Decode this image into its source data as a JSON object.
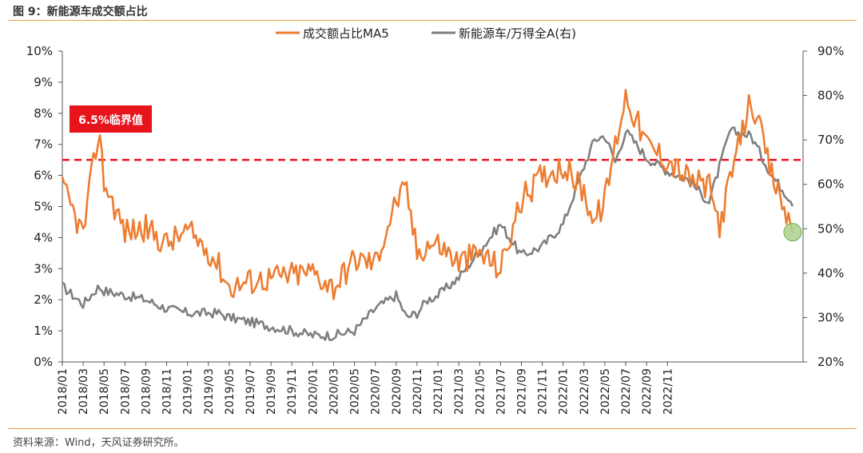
{
  "title": "图 9：新能源车成交额占比",
  "source": "资料来源：Wind，天风证券研究所。",
  "chart_data": {
    "type": "line",
    "title": "图 9：新能源车成交额占比",
    "annotation": "6.5%临界值",
    "threshold": 6.5,
    "ylim_left": [
      0,
      10
    ],
    "ylim_right": [
      20,
      90
    ],
    "yticks_left": [
      "0%",
      "1%",
      "2%",
      "3%",
      "4%",
      "5%",
      "6%",
      "7%",
      "8%",
      "9%",
      "10%"
    ],
    "yticks_right": [
      "20%",
      "30%",
      "40%",
      "50%",
      "60%",
      "70%",
      "80%",
      "90%"
    ],
    "x_tick_labels": [
      "2018/01",
      "2018/03",
      "2018/05",
      "2018/07",
      "2018/09",
      "2018/11",
      "2019/01",
      "2019/03",
      "2019/05",
      "2019/07",
      "2019/09",
      "2019/11",
      "2020/01",
      "2020/03",
      "2020/05",
      "2020/07",
      "2020/09",
      "2020/11",
      "2021/01",
      "2021/03",
      "2021/05",
      "2021/07",
      "2021/09",
      "2021/11",
      "2022/01",
      "2022/03",
      "2022/05",
      "2022/07",
      "2022/09",
      "2022/11"
    ],
    "x_months": [
      0,
      2,
      3.5,
      4,
      6,
      8,
      10,
      12,
      14,
      15,
      16,
      18,
      20,
      22,
      24,
      26,
      28,
      30,
      32,
      33,
      34,
      35,
      36,
      38,
      40,
      42,
      44,
      46,
      48,
      50,
      51,
      52,
      53,
      54,
      56,
      58,
      60,
      62,
      63,
      64,
      66,
      68,
      70
    ],
    "series": [
      {
        "name": "成交额占比MA5",
        "axis": "left",
        "color": "#ed7d31",
        "values": [
          5.6,
          4.1,
          7.5,
          5.8,
          4.2,
          4.3,
          3.8,
          4.2,
          3.6,
          3.1,
          2.4,
          2.6,
          2.7,
          2.8,
          2.9,
          2.4,
          3.3,
          3.2,
          5.2,
          5.5,
          3.5,
          3.8,
          3.8,
          3.2,
          3.5,
          3.0,
          5.2,
          6.0,
          6.3,
          5.5,
          4.5,
          5.2,
          7.0,
          8.6,
          7.0,
          6.5,
          5.9,
          5.6,
          4.4,
          5.8,
          8.5,
          6.0,
          4.2
        ]
      },
      {
        "name": "新能源车/万得全A(右)",
        "axis": "right",
        "color": "#7f7f7f",
        "values": [
          37,
          33,
          37,
          36,
          35,
          34,
          32,
          31,
          31,
          31,
          30,
          29,
          28,
          27,
          26,
          26,
          27,
          32,
          35,
          30,
          31,
          34,
          35,
          39,
          45,
          51,
          44,
          46,
          51,
          64,
          70,
          71,
          65,
          72,
          66,
          63,
          61,
          56,
          64,
          72,
          71,
          62,
          56
        ]
      }
    ],
    "legend_position": "top-center"
  }
}
